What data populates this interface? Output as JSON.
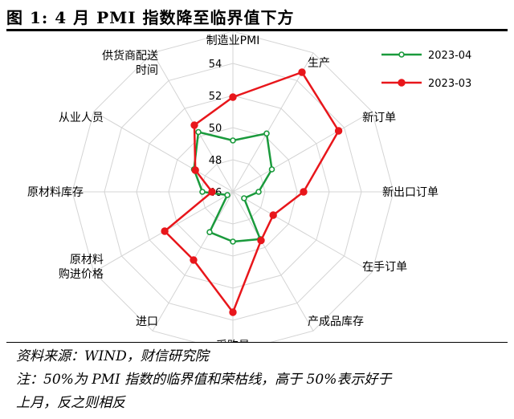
{
  "figure": {
    "title": "图 1:  4 月 PMI 指数降至临界值下方",
    "source": "资料来源：WIND，财信研究院",
    "note_line1": "注：50%为 PMI 指数的临界值和荣枯线，高于 50%表示好于",
    "note_line2": "上月，反之则相反"
  },
  "chart_data": {
    "type": "radar",
    "categories": [
      "制造业PMI",
      "生产",
      "新订单",
      "新出口订单",
      "在手订单",
      "产成品库存",
      "采购量",
      "进口",
      "原材料\n购进价格",
      "原材料库存",
      "从业人员",
      "供货商配送\n时间"
    ],
    "rlim": [
      46,
      54
    ],
    "ticks": [
      46,
      48,
      50,
      52,
      54
    ],
    "series": [
      {
        "name": "2023-04",
        "color": "#1a9a3c",
        "values": [
          49.2,
          50.2,
          48.8,
          47.6,
          46.8,
          49.4,
          49.1,
          48.9,
          46.4,
          47.9,
          48.8,
          50.3
        ]
      },
      {
        "name": "2023-03",
        "color": "#e8161b",
        "values": [
          51.9,
          54.6,
          53.6,
          50.4,
          48.9,
          49.5,
          53.5,
          50.9,
          50.9,
          47.3,
          48.7,
          50.8
        ]
      }
    ],
    "legend": "top-right",
    "grid": true
  }
}
